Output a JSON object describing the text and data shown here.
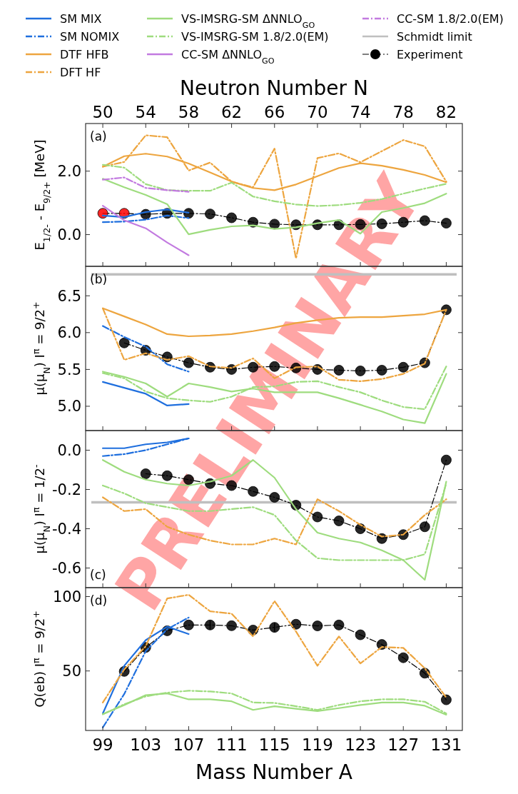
{
  "chart_data": [
    {
      "type": "line",
      "xlim": [
        97.4,
        132.5
      ],
      "xticks": [
        99,
        103,
        107,
        111,
        115,
        119,
        123,
        127,
        131
      ],
      "x2lim": [
        48.4,
        83.5
      ],
      "x2ticks": [
        50,
        54,
        58,
        62,
        66,
        70,
        74,
        78,
        82
      ],
      "x2label": "Neutron Number N",
      "ylim": [
        -1.0,
        3.5
      ],
      "yticks": [
        {
          "value": 0,
          "label": "0.0"
        },
        {
          "value": 2,
          "label": "2.0"
        }
      ],
      "ylabel": "E$_{1/2-}$ - E$_{9/2+}$ [MeV]",
      "tick_labels": "y",
      "legend": "top",
      "annotations": [
        "(a)",
        "PRELIMINARY"
      ],
      "x": [
        99,
        101,
        103,
        105,
        107,
        109,
        111,
        113,
        115,
        117,
        119,
        121,
        123,
        125,
        127,
        129,
        131
      ],
      "series": [
        {
          "name": "SM MIX",
          "color": "#1f6fde",
          "line_style": "solid",
          "values": [
            0.6,
            0.55,
            0.71,
            0.79,
            0.69,
            null,
            null,
            null,
            null,
            null,
            null,
            null,
            null,
            null,
            null,
            null,
            null
          ]
        },
        {
          "name": "SM NOMIX",
          "color": "#1f6fde",
          "line_style": "dashdot",
          "values": [
            0.39,
            0.41,
            0.47,
            0.6,
            0.52,
            null,
            null,
            null,
            null,
            null,
            null,
            null,
            null,
            null,
            null,
            null,
            null
          ]
        },
        {
          "name": "DTF HFB",
          "color": "#eda53f",
          "line_style": "solid",
          "values": [
            2.14,
            2.47,
            2.55,
            2.46,
            2.24,
            1.96,
            1.67,
            1.47,
            1.4,
            1.58,
            1.84,
            2.1,
            2.25,
            2.17,
            2.04,
            1.88,
            1.65
          ]
        },
        {
          "name": "DFT HF",
          "color": "#eda53f",
          "line_style": "dashdot",
          "values": [
            2.14,
            2.29,
            3.13,
            3.07,
            2.02,
            2.27,
            1.67,
            1.49,
            2.71,
            -0.75,
            2.41,
            2.56,
            2.28,
            2.63,
            2.98,
            2.78,
            1.67
          ]
        },
        {
          "name": "VS-IMSRG-SM ΔNNLO$_{GO}$",
          "color": "#9edc7e",
          "line_style": "solid",
          "values": [
            1.76,
            1.49,
            1.25,
            0.96,
            0.01,
            0.15,
            0.26,
            0.29,
            0.18,
            0.23,
            0.36,
            0.46,
            0.03,
            0.71,
            0.84,
            0.99,
            1.29
          ]
        },
        {
          "name": "VS-IMSRG-SM 1.8/2.0(EM)",
          "color": "#9edc7e",
          "line_style": "dashdot",
          "values": [
            2.2,
            2.11,
            1.59,
            1.4,
            1.38,
            1.38,
            1.64,
            1.2,
            1.05,
            0.95,
            0.9,
            0.93,
            1.0,
            1.12,
            1.29,
            1.45,
            1.6
          ]
        },
        {
          "name": "CC-SM ΔNNLO$_{GO}$",
          "color": "#c27ae0",
          "line_style": "solid",
          "values": [
            0.91,
            0.45,
            0.2,
            -0.25,
            -0.65,
            null,
            null,
            null,
            null,
            null,
            null,
            null,
            null,
            null,
            null,
            null,
            null
          ]
        },
        {
          "name": "CC-SM 1.8/2.0(EM)",
          "color": "#c27ae0",
          "line_style": "dashdot",
          "values": [
            1.73,
            1.8,
            1.47,
            1.4,
            1.35,
            null,
            null,
            null,
            null,
            null,
            null,
            null,
            null,
            null,
            null,
            null,
            null
          ]
        },
        {
          "name": "Experiment",
          "color": "#000000",
          "line_style": "dashdot",
          "marker": "circle",
          "colors": [
            "#ff0000",
            "#ff0000",
            "#000000",
            "#000000",
            "#000000",
            "#000000",
            "#000000",
            "#000000",
            "#000000",
            "#000000",
            "#000000",
            "#000000",
            "#000000",
            "#000000",
            "#000000",
            "#000000",
            "#000000"
          ],
          "values": [
            0.67,
            0.67,
            0.64,
            0.67,
            0.67,
            0.65,
            0.53,
            0.39,
            0.33,
            0.31,
            0.31,
            0.31,
            0.32,
            0.34,
            0.39,
            0.44,
            0.36
          ]
        }
      ]
    },
    {
      "type": "line",
      "xlim": [
        97.4,
        132.5
      ],
      "xticks": [
        99,
        103,
        107,
        111,
        115,
        119,
        123,
        127,
        131
      ],
      "ylim": [
        4.67,
        6.9
      ],
      "ref_lines": [
        {
          "axis": "y",
          "value": 6.79,
          "label": "Schmidt limit",
          "color": "#bfbfbf"
        }
      ],
      "yticks": [
        {
          "value": 5,
          "label": "5.0"
        },
        5.5,
        {
          "value": 6,
          "label": "6.0"
        },
        6.5
      ],
      "ylabel": "μ(μ$_{N}$) I$^{π}$ = 9/2$^{+}$",
      "tick_labels": "y",
      "annotations": [
        "(b)"
      ],
      "x": [
        99,
        101,
        103,
        105,
        107,
        109,
        111,
        113,
        115,
        117,
        119,
        121,
        123,
        125,
        127,
        129,
        131
      ],
      "series": [
        {
          "name": "SM MIX",
          "color": "#1f6fde",
          "line_style": "solid",
          "values": [
            5.33,
            5.25,
            5.17,
            5.01,
            5.03,
            null,
            null,
            null,
            null,
            null,
            null,
            null,
            null,
            null,
            null,
            null,
            null
          ]
        },
        {
          "name": "SM NOMIX",
          "color": "#1f6fde",
          "line_style": "dashdot",
          "values": [
            6.09,
            5.94,
            5.81,
            5.57,
            5.47,
            null,
            null,
            null,
            null,
            null,
            null,
            null,
            null,
            null,
            null,
            null,
            null
          ]
        },
        {
          "name": "DTF HFB",
          "color": "#eda53f",
          "line_style": "solid",
          "values": [
            6.33,
            6.22,
            6.11,
            5.98,
            5.95,
            5.96,
            5.98,
            6.02,
            6.07,
            6.13,
            6.17,
            6.2,
            6.21,
            6.21,
            6.23,
            6.25,
            6.31
          ]
        },
        {
          "name": "DFT HF",
          "color": "#eda53f",
          "line_style": "dashdot",
          "values": [
            6.33,
            5.63,
            5.72,
            5.63,
            5.68,
            5.54,
            5.52,
            5.65,
            5.38,
            5.53,
            5.54,
            5.36,
            5.34,
            5.37,
            5.44,
            5.58,
            6.31
          ]
        },
        {
          "name": "VS-IMSRG-SM ΔNNLO$_{GO}$",
          "color": "#9edc7e",
          "line_style": "solid",
          "values": [
            5.47,
            5.4,
            5.31,
            5.13,
            5.31,
            5.26,
            5.2,
            5.24,
            5.19,
            5.19,
            5.19,
            5.11,
            5.02,
            4.93,
            4.82,
            4.77,
            5.44
          ]
        },
        {
          "name": "VS-IMSRG-SM 1.8/2.0(EM)",
          "color": "#9edc7e",
          "line_style": "dashdot",
          "values": [
            5.45,
            5.38,
            5.2,
            5.11,
            5.08,
            5.06,
            5.13,
            5.26,
            5.27,
            5.33,
            5.34,
            5.26,
            5.19,
            5.08,
            4.99,
            4.96,
            5.54
          ]
        },
        {
          "name": "Experiment",
          "color": "#000000",
          "line_style": "dashdot",
          "marker": "circle",
          "values": [
            null,
            5.86,
            5.76,
            5.67,
            5.59,
            5.53,
            5.5,
            5.53,
            5.54,
            5.52,
            5.5,
            5.49,
            5.48,
            5.49,
            5.53,
            5.59,
            6.31
          ]
        }
      ]
    },
    {
      "type": "line",
      "xlim": [
        97.4,
        132.5
      ],
      "xticks": [
        99,
        103,
        107,
        111,
        115,
        119,
        123,
        127,
        131
      ],
      "ylim": [
        -0.7,
        0.1
      ],
      "ref_lines": [
        {
          "axis": "y",
          "value": -0.265,
          "color": "#bfbfbf"
        }
      ],
      "yticks": [
        -0.6,
        -0.4,
        -0.2,
        {
          "value": 0,
          "label": "0.0"
        }
      ],
      "ylabel": "μ(μ$_{N}$) I$^{π}$ = 1/2$^{-}$",
      "tick_labels": "y",
      "annotations": [
        "(c)"
      ],
      "x": [
        99,
        101,
        103,
        105,
        107,
        109,
        111,
        113,
        115,
        117,
        119,
        121,
        123,
        125,
        127,
        129,
        131
      ],
      "series": [
        {
          "name": "SM MIX",
          "color": "#1f6fde",
          "line_style": "solid",
          "values": [
            0.01,
            0.01,
            0.03,
            0.04,
            0.06,
            null,
            null,
            null,
            null,
            null,
            null,
            null,
            null,
            null,
            null,
            null,
            null
          ]
        },
        {
          "name": "SM NOMIX",
          "color": "#1f6fde",
          "line_style": "dashdot",
          "values": [
            -0.03,
            -0.02,
            0.0,
            0.03,
            0.06,
            null,
            null,
            null,
            null,
            null,
            null,
            null,
            null,
            null,
            null,
            null,
            null
          ]
        },
        {
          "name": "DFT HF",
          "color": "#eda53f",
          "line_style": "dashdot",
          "values": [
            -0.24,
            -0.31,
            -0.3,
            -0.39,
            -0.43,
            -0.46,
            -0.48,
            -0.48,
            -0.45,
            -0.48,
            -0.25,
            -0.31,
            -0.38,
            -0.44,
            -0.43,
            -0.33,
            -0.25
          ]
        },
        {
          "name": "VS-IMSRG-SM ΔNNLO$_{GO}$",
          "color": "#9edc7e",
          "line_style": "solid",
          "values": [
            -0.05,
            -0.11,
            -0.15,
            -0.17,
            -0.18,
            -0.16,
            -0.13,
            -0.05,
            -0.14,
            -0.3,
            -0.42,
            -0.45,
            -0.47,
            -0.51,
            -0.56,
            -0.66,
            -0.16
          ]
        },
        {
          "name": "VS-IMSRG-SM 1.8/2.0(EM)",
          "color": "#9edc7e",
          "line_style": "dashdot",
          "values": [
            -0.18,
            -0.22,
            -0.27,
            -0.29,
            -0.31,
            -0.31,
            -0.3,
            -0.29,
            -0.33,
            -0.46,
            -0.55,
            -0.56,
            -0.56,
            -0.56,
            -0.56,
            -0.53,
            -0.17
          ]
        },
        {
          "name": "Experiment",
          "color": "#000000",
          "line_style": "dashdot",
          "marker": "circle",
          "values": [
            null,
            null,
            -0.12,
            -0.13,
            -0.15,
            -0.17,
            -0.18,
            -0.21,
            -0.24,
            -0.28,
            -0.34,
            -0.36,
            -0.4,
            -0.45,
            -0.43,
            -0.39,
            -0.05
          ]
        }
      ]
    },
    {
      "type": "line",
      "xlim": [
        97.4,
        132.5
      ],
      "xticks": [
        99,
        103,
        107,
        111,
        115,
        119,
        123,
        127,
        131
      ],
      "xlabel": "Mass Number A",
      "ylim": [
        10,
        106
      ],
      "yticks": [
        50,
        100
      ],
      "ylabel": "Q(eb) I$^{π}$ = 9/2$^{+}$",
      "annotations": [
        "(d)"
      ],
      "x": [
        99,
        101,
        103,
        105,
        107,
        109,
        111,
        113,
        115,
        117,
        119,
        121,
        123,
        125,
        127,
        129,
        131
      ],
      "series": [
        {
          "name": "SM MIX",
          "color": "#1f6fde",
          "line_style": "solid",
          "values": [
            21.4,
            53.5,
            70.7,
            79.8,
            74.8,
            null,
            null,
            null,
            null,
            null,
            null,
            null,
            null,
            null,
            null,
            null,
            null
          ]
        },
        {
          "name": "SM NOMIX",
          "color": "#1f6fde",
          "line_style": "dashdot",
          "values": [
            12,
            34.5,
            63.3,
            78.1,
            85.9,
            null,
            null,
            null,
            null,
            null,
            null,
            null,
            null,
            null,
            null,
            null,
            null
          ]
        },
        {
          "name": "DFT HF",
          "color": "#eda53f",
          "line_style": "dashdot",
          "values": [
            28.8,
            51.0,
            66.6,
            98.7,
            101.2,
            90.1,
            88.5,
            73.2,
            97.0,
            76.5,
            53.5,
            73.2,
            55.1,
            66.1,
            65.5,
            51.8,
            32.1
          ]
        },
        {
          "name": "VS-IMSRG-SM ΔNNLO$_{GO}$",
          "color": "#9edc7e",
          "line_style": "solid",
          "values": [
            20.9,
            27.1,
            33.7,
            34.9,
            30.9,
            30.9,
            29.6,
            23.8,
            26.3,
            24.6,
            23.0,
            25.0,
            27.1,
            28.8,
            28.8,
            26.6,
            20.6
          ]
        },
        {
          "name": "VS-IMSRG-SM 1.8/2.0(EM)",
          "color": "#9edc7e",
          "line_style": "dashdot",
          "values": [
            20.9,
            27.6,
            32.9,
            35.4,
            36.7,
            36.2,
            34.9,
            28.8,
            28.5,
            26.3,
            23.8,
            27.1,
            29.6,
            30.9,
            30.9,
            29.3,
            21.4
          ]
        },
        {
          "name": "Experiment",
          "color": "#000000",
          "line_style": "dashdot",
          "marker": "circle",
          "errors": [
            null,
            null,
            null,
            null,
            null,
            3,
            null,
            null,
            3,
            null,
            null,
            null,
            null,
            null,
            null,
            null,
            null
          ],
          "values": [
            null,
            49.7,
            65.8,
            77.0,
            80.9,
            80.9,
            80.4,
            77.5,
            79.3,
            81.4,
            80.3,
            80.9,
            74.3,
            67.8,
            58.9,
            48.5,
            30.6
          ]
        }
      ]
    }
  ]
}
